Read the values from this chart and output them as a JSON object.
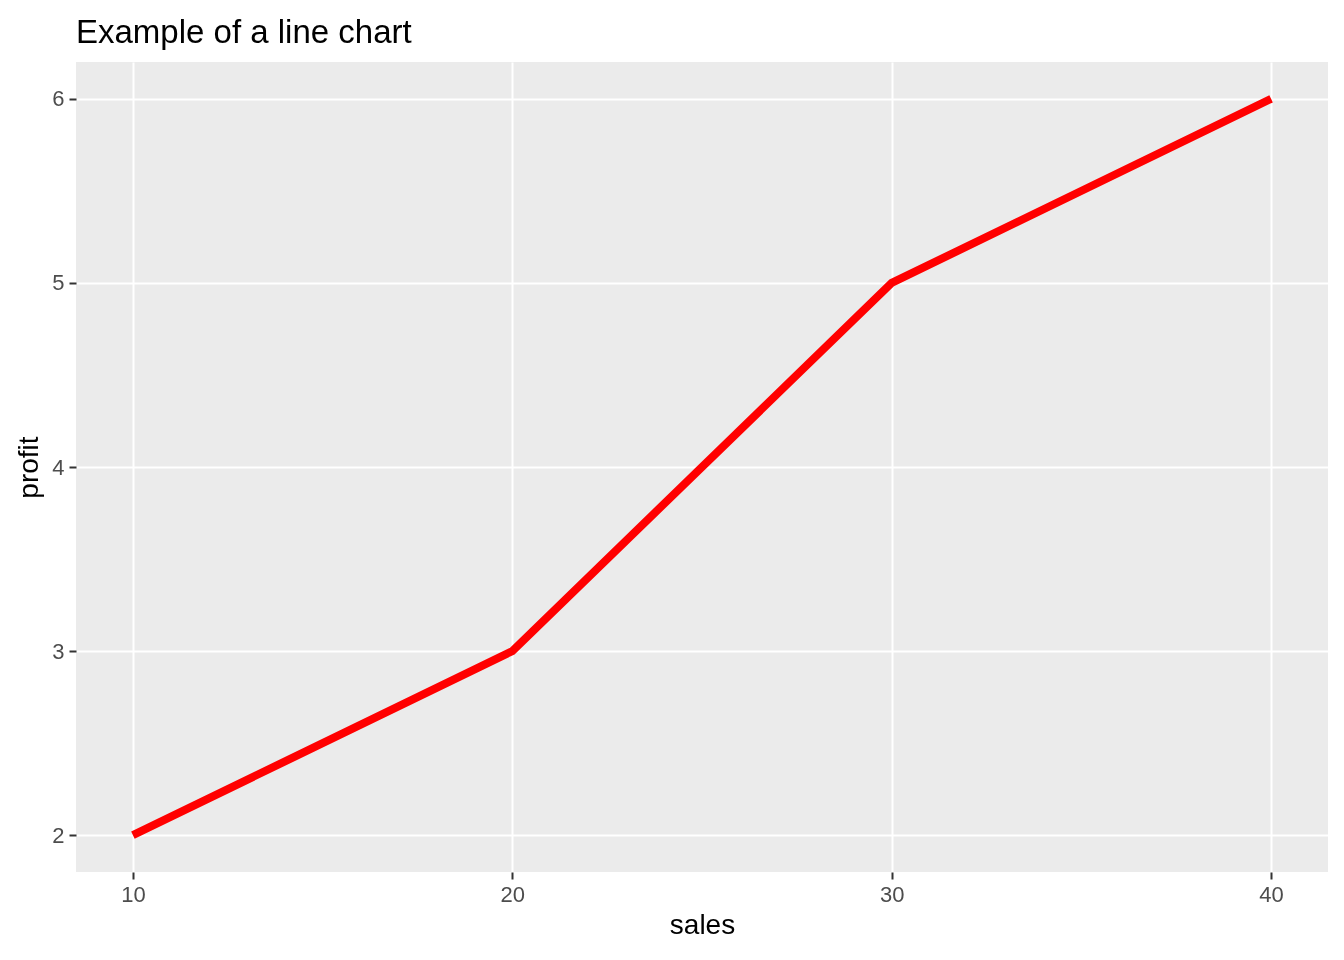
{
  "chart_data": {
    "type": "line",
    "title": "Example of a line chart",
    "xlabel": "sales",
    "ylabel": "profit",
    "x": [
      10,
      20,
      30,
      40
    ],
    "series": [
      {
        "color": "#ff0000",
        "values": [
          2,
          3,
          5,
          6
        ]
      }
    ],
    "xlim": [
      8.5,
      41.5
    ],
    "ylim": [
      1.8,
      6.2
    ],
    "xticks": [
      10,
      20,
      30,
      40
    ],
    "yticks": [
      2,
      3,
      4,
      5,
      6
    ],
    "grid": true,
    "line_style": "solid"
  }
}
